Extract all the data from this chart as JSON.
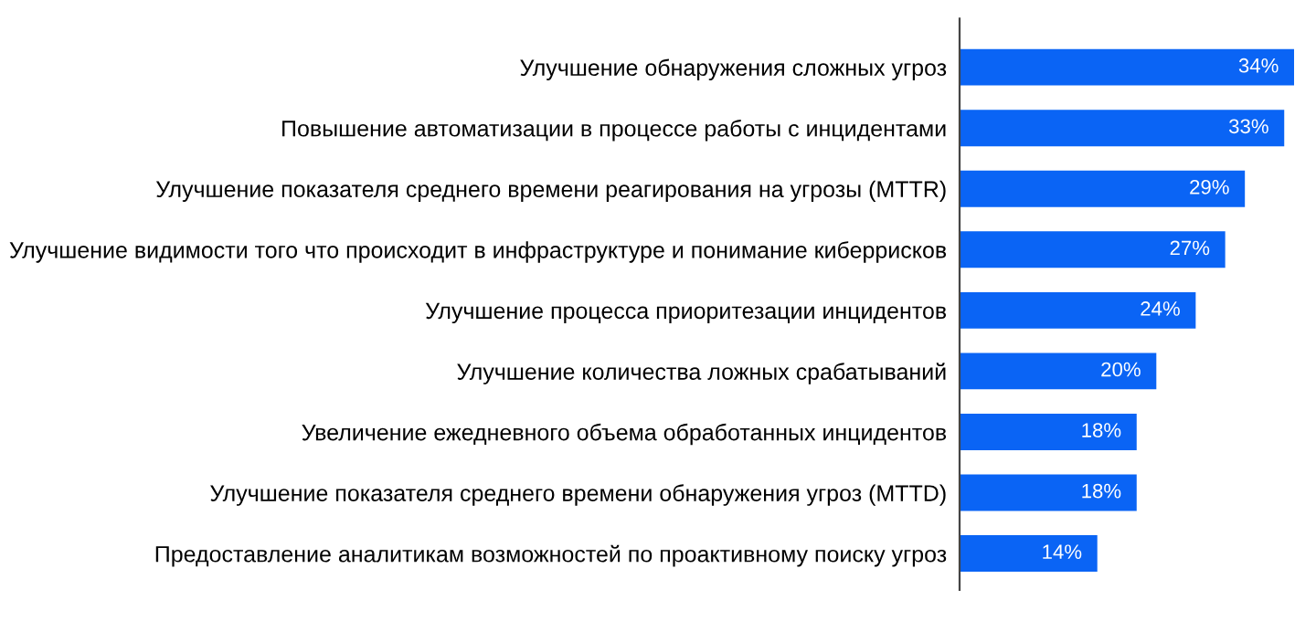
{
  "chart_data": {
    "type": "bar",
    "orientation": "horizontal",
    "categories": [
      "Улучшение обнаружения сложных угроз",
      "Повышение автоматизации в процессе работы с инцидентами",
      "Улучшение показателя среднего времени реагирования на угрозы (MTTR)",
      "Улучшение видимости того что происходит в инфраструктуре и понимание киберрисков",
      "Улучшение процесса приоритезации инцидентов",
      "Улучшение количества ложных срабатываний",
      "Увеличение ежедневного объема обработанных инцидентов",
      "Улучшение показателя среднего времени обнаружения угроз (MTTD)",
      "Предоставление аналитикам возможностей по проактивному поиску угроз"
    ],
    "values": [
      34,
      33,
      29,
      27,
      24,
      20,
      18,
      18,
      14
    ],
    "value_labels": [
      "34%",
      "33%",
      "29%",
      "27%",
      "24%",
      "20%",
      "18%",
      "18%",
      "14%"
    ],
    "color": "#0a64f5",
    "grid": false,
    "legend": false
  }
}
